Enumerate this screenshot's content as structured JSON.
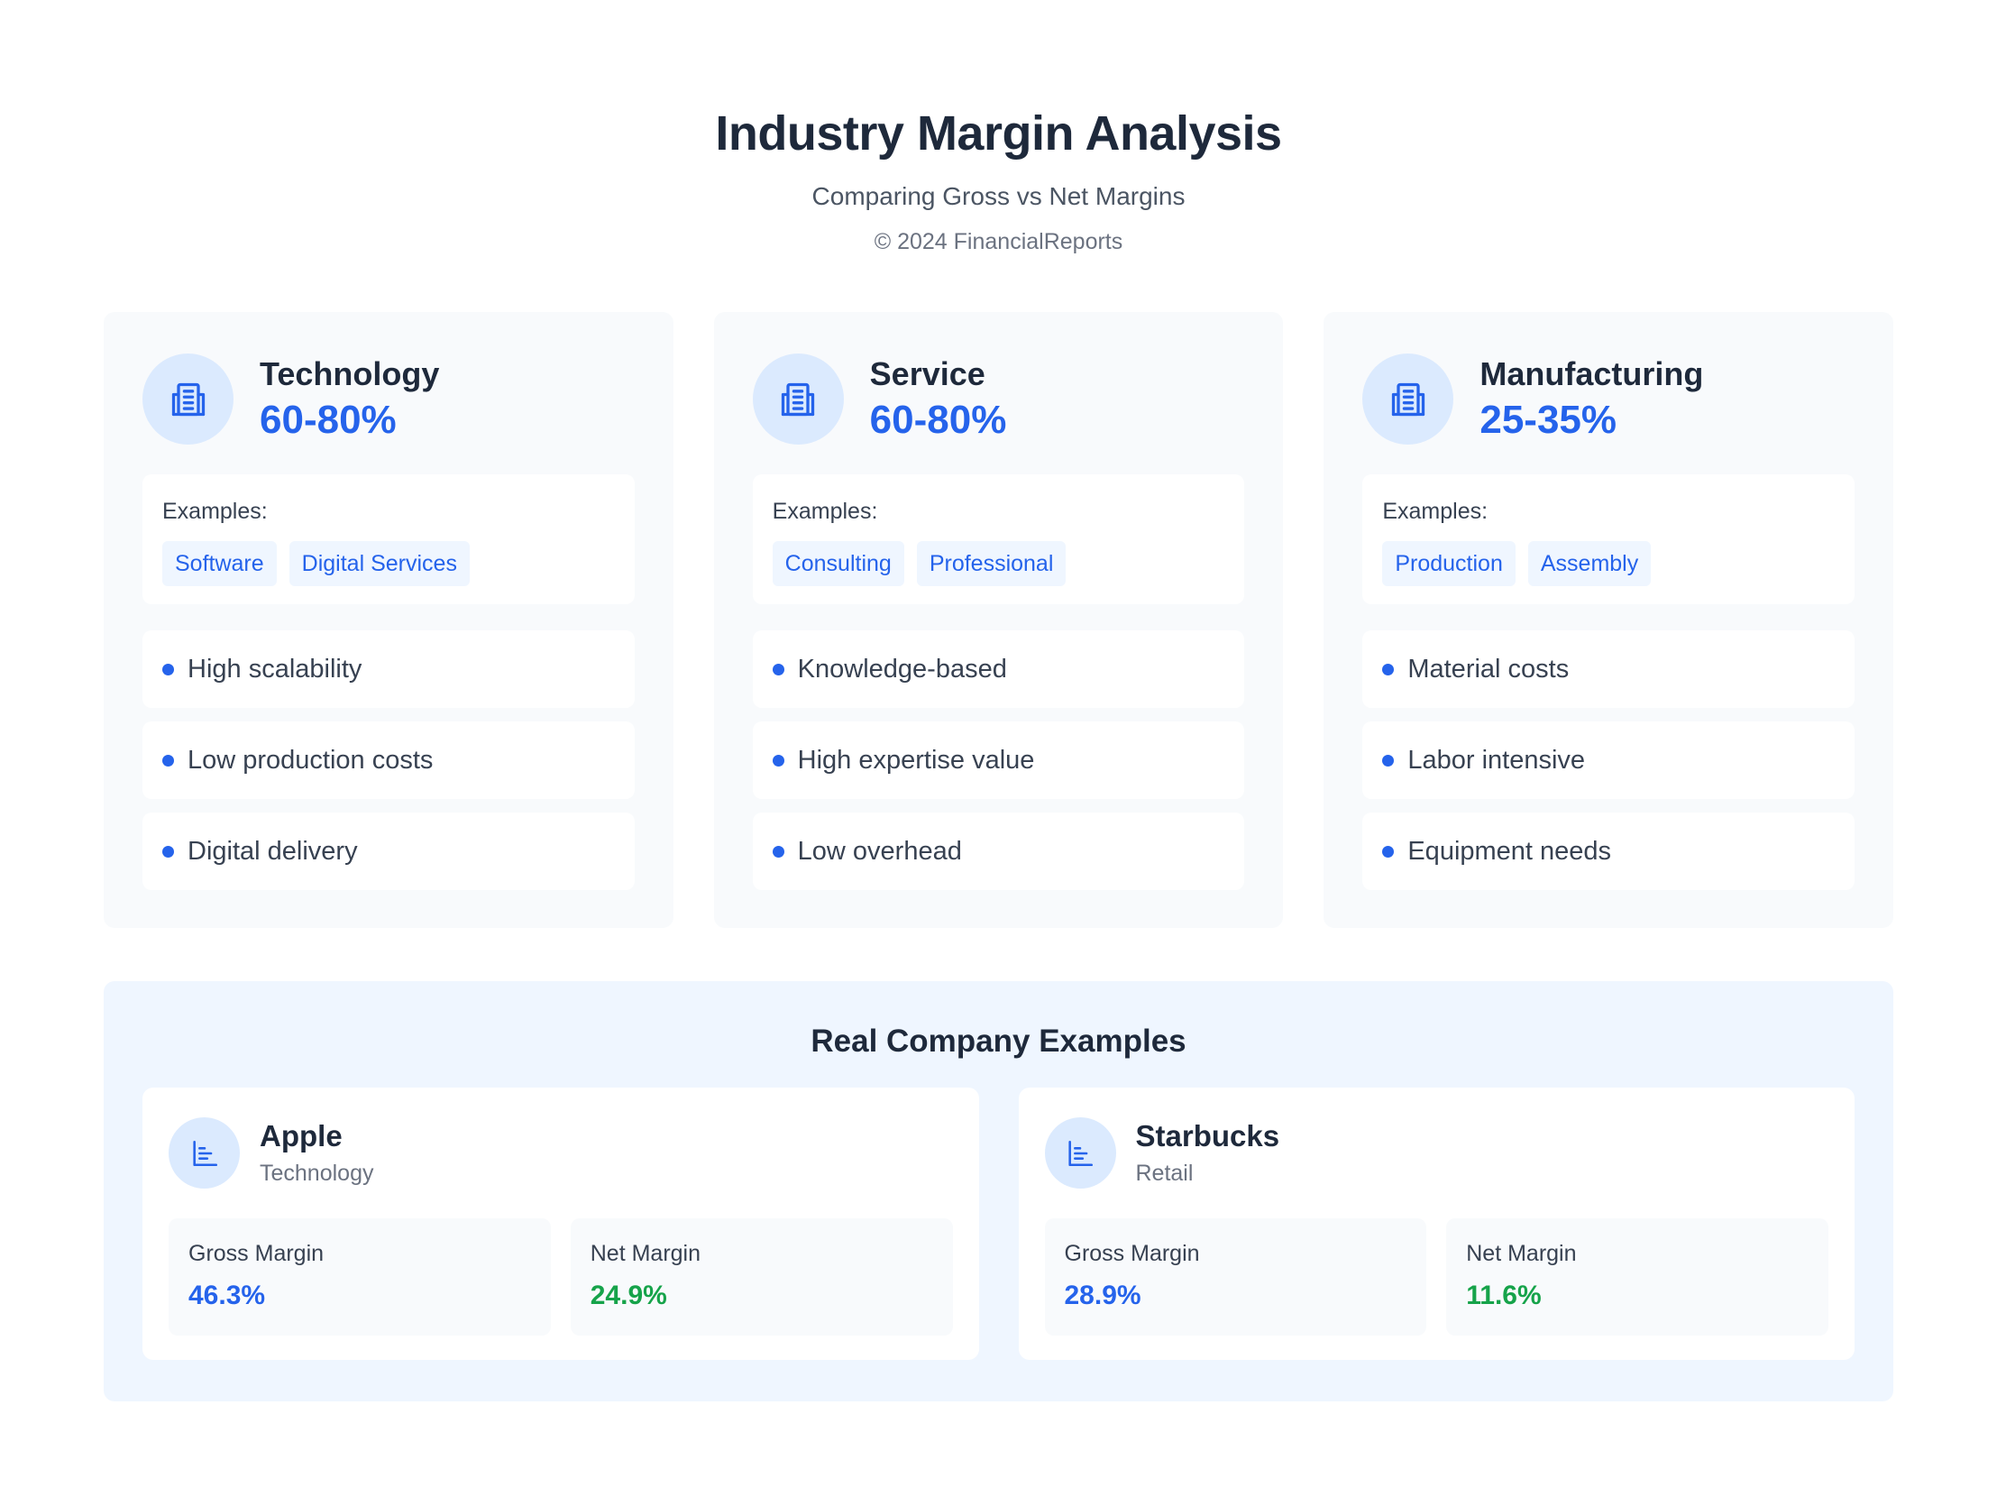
{
  "header": {
    "title": "Industry Margin Analysis",
    "subtitle": "Comparing Gross vs Net Margins",
    "copyright": "© 2024 FinancialReports"
  },
  "industries": [
    {
      "name": "Technology",
      "range": "60-80%",
      "icon": "building-icon",
      "examples_label": "Examples:",
      "examples": [
        "Software",
        "Digital Services"
      ],
      "features": [
        "High scalability",
        "Low production costs",
        "Digital delivery"
      ]
    },
    {
      "name": "Service",
      "range": "60-80%",
      "icon": "building-icon",
      "examples_label": "Examples:",
      "examples": [
        "Consulting",
        "Professional"
      ],
      "features": [
        "Knowledge-based",
        "High expertise value",
        "Low overhead"
      ]
    },
    {
      "name": "Manufacturing",
      "range": "25-35%",
      "icon": "building-icon",
      "examples_label": "Examples:",
      "examples": [
        "Production",
        "Assembly"
      ],
      "features": [
        "Material costs",
        "Labor intensive",
        "Equipment needs"
      ]
    }
  ],
  "companies_section": {
    "title": "Real Company Examples",
    "companies": [
      {
        "name": "Apple",
        "sector": "Technology",
        "icon": "bar-chart-icon",
        "gross_label": "Gross Margin",
        "gross_value": "46.3%",
        "net_label": "Net Margin",
        "net_value": "24.9%"
      },
      {
        "name": "Starbucks",
        "sector": "Retail",
        "icon": "bar-chart-icon",
        "gross_label": "Gross Margin",
        "gross_value": "28.9%",
        "net_label": "Net Margin",
        "net_value": "11.6%"
      }
    ]
  },
  "colors": {
    "accent": "#2563eb",
    "positive": "#16a34a",
    "icon_bg": "#dbeafe"
  }
}
